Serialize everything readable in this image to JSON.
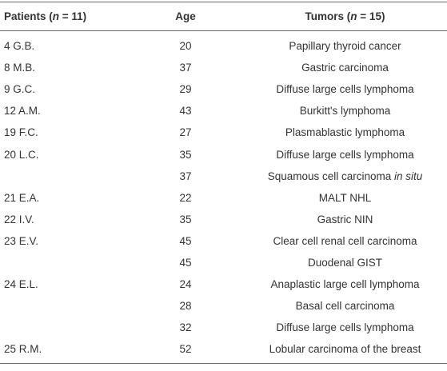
{
  "table": {
    "header": [
      [
        "Patients (",
        "n",
        " = 11)"
      ],
      [
        "Age"
      ],
      [
        "Tumors (",
        "n",
        " = 15)"
      ]
    ],
    "rows": [
      [
        "4 G.B.",
        20,
        "Papillary thyroid cancer"
      ],
      [
        "8 M.B.",
        37,
        "Gastric carcinoma"
      ],
      [
        "9 G.C.",
        29,
        "Diffuse large cells lymphoma"
      ],
      [
        "12 A.M.",
        43,
        "Burkitt's lymphoma"
      ],
      [
        "19 F.C.",
        27,
        "Plasmablastic lymphoma"
      ],
      [
        "20 L.C.",
        35,
        "Diffuse large cells lymphoma"
      ],
      [
        null,
        37,
        [
          "Squamous cell carcinoma ",
          "in situ"
        ]
      ],
      [
        "21 E.A.",
        22,
        "MALT NHL"
      ],
      [
        "22 I.V.",
        35,
        "Gastric NIN"
      ],
      [
        "23 E.V.",
        45,
        "Clear cell renal cell carcinoma"
      ],
      [
        null,
        45,
        "Duodenal GIST"
      ],
      [
        "24 E.L.",
        24,
        "Anaplastic large cell lymphoma"
      ],
      [
        null,
        28,
        "Basal cell carcinoma"
      ],
      [
        null,
        32,
        "Diffuse large cells lymphoma"
      ],
      [
        "25 R.M.",
        52,
        "Lobular carcinoma of the breast"
      ]
    ]
  }
}
